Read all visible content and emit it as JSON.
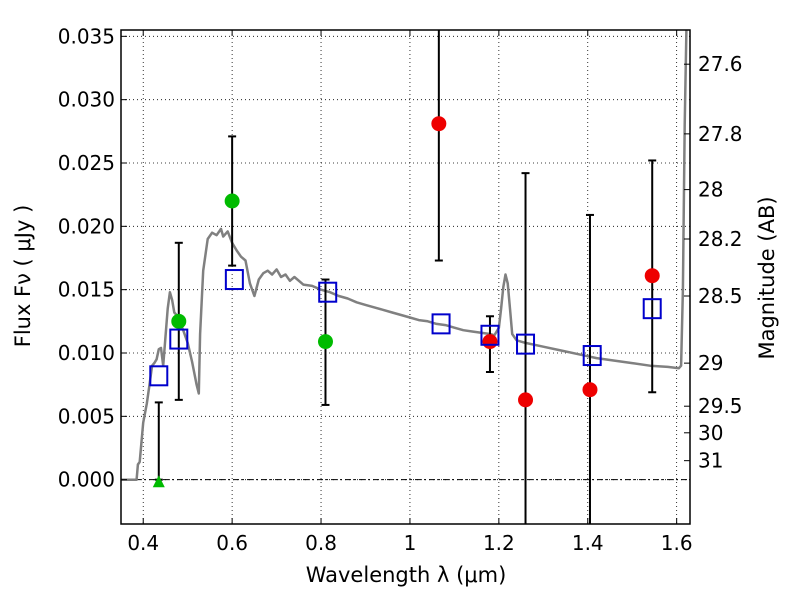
{
  "chart_data": {
    "type": "scatter",
    "title": "",
    "xlabel": "Wavelength  λ (μm)",
    "ylabel": "Flux  Fν  ( μJy )",
    "ylabel_right": "Magnitude (AB)",
    "xlim": [
      0.35,
      1.63
    ],
    "ylim": [
      -0.0035,
      0.0355
    ],
    "grid": true,
    "x_ticks": [
      {
        "value": 0.4,
        "label": "0.4"
      },
      {
        "value": 0.6,
        "label": "0.6"
      },
      {
        "value": 0.8,
        "label": "0.8"
      },
      {
        "value": 1.0,
        "label": "1"
      },
      {
        "value": 1.2,
        "label": "1.2"
      },
      {
        "value": 1.4,
        "label": "1.4"
      },
      {
        "value": 1.6,
        "label": "1.6"
      }
    ],
    "y_ticks": [
      {
        "value": 0.0,
        "label": "0.000"
      },
      {
        "value": 0.005,
        "label": "0.005"
      },
      {
        "value": 0.01,
        "label": "0.010"
      },
      {
        "value": 0.015,
        "label": "0.015"
      },
      {
        "value": 0.02,
        "label": "0.020"
      },
      {
        "value": 0.025,
        "label": "0.025"
      },
      {
        "value": 0.03,
        "label": "0.030"
      },
      {
        "value": 0.035,
        "label": "0.035"
      }
    ],
    "magnitude_ticks": [
      {
        "flux": 0.0328,
        "label": "27.6"
      },
      {
        "flux": 0.0273,
        "label": "27.8"
      },
      {
        "flux": 0.0229,
        "label": "28"
      },
      {
        "flux": 0.019,
        "label": "28.2"
      },
      {
        "flux": 0.0145,
        "label": "28.5"
      },
      {
        "flux": 0.0092,
        "label": "29"
      },
      {
        "flux": 0.0058,
        "label": "29.5"
      },
      {
        "flux": 0.0037,
        "label": "30"
      },
      {
        "flux": 0.0015,
        "label": "31"
      }
    ],
    "series": [
      {
        "name": "model-sed",
        "type": "line",
        "color": "#808080",
        "points": [
          [
            0.35,
            0.0
          ],
          [
            0.375,
            0.0
          ],
          [
            0.385,
            0.0
          ],
          [
            0.388,
            0.0012
          ],
          [
            0.392,
            0.0014
          ],
          [
            0.4,
            0.0045
          ],
          [
            0.408,
            0.006
          ],
          [
            0.414,
            0.0075
          ],
          [
            0.42,
            0.009
          ],
          [
            0.425,
            0.0092
          ],
          [
            0.43,
            0.0095
          ],
          [
            0.435,
            0.0103
          ],
          [
            0.44,
            0.0104
          ],
          [
            0.445,
            0.009
          ],
          [
            0.45,
            0.0113
          ],
          [
            0.455,
            0.0135
          ],
          [
            0.46,
            0.0148
          ],
          [
            0.465,
            0.0142
          ],
          [
            0.47,
            0.0132
          ],
          [
            0.48,
            0.0128
          ],
          [
            0.485,
            0.0122
          ],
          [
            0.49,
            0.0118
          ],
          [
            0.5,
            0.0108
          ],
          [
            0.51,
            0.0093
          ],
          [
            0.52,
            0.0075
          ],
          [
            0.525,
            0.0068
          ],
          [
            0.528,
            0.0115
          ],
          [
            0.535,
            0.0165
          ],
          [
            0.545,
            0.019
          ],
          [
            0.555,
            0.0195
          ],
          [
            0.565,
            0.0193
          ],
          [
            0.575,
            0.0198
          ],
          [
            0.58,
            0.0192
          ],
          [
            0.59,
            0.0196
          ],
          [
            0.6,
            0.0187
          ],
          [
            0.61,
            0.0181
          ],
          [
            0.62,
            0.0176
          ],
          [
            0.63,
            0.0173
          ],
          [
            0.64,
            0.0155
          ],
          [
            0.65,
            0.0145
          ],
          [
            0.66,
            0.0158
          ],
          [
            0.67,
            0.0163
          ],
          [
            0.68,
            0.0165
          ],
          [
            0.69,
            0.0162
          ],
          [
            0.7,
            0.0166
          ],
          [
            0.71,
            0.016
          ],
          [
            0.72,
            0.0162
          ],
          [
            0.73,
            0.0157
          ],
          [
            0.74,
            0.016
          ],
          [
            0.76,
            0.0154
          ],
          [
            0.78,
            0.0153
          ],
          [
            0.8,
            0.015
          ],
          [
            0.82,
            0.0148
          ],
          [
            0.84,
            0.0145
          ],
          [
            0.86,
            0.0143
          ],
          [
            0.88,
            0.014
          ],
          [
            0.9,
            0.0138
          ],
          [
            0.92,
            0.0136
          ],
          [
            0.94,
            0.0134
          ],
          [
            0.96,
            0.0132
          ],
          [
            0.98,
            0.013
          ],
          [
            1.0,
            0.0128
          ],
          [
            1.02,
            0.0126
          ],
          [
            1.04,
            0.0125
          ],
          [
            1.06,
            0.0123
          ],
          [
            1.08,
            0.0122
          ],
          [
            1.1,
            0.012
          ],
          [
            1.12,
            0.0118
          ],
          [
            1.14,
            0.0117
          ],
          [
            1.16,
            0.0116
          ],
          [
            1.18,
            0.0115
          ],
          [
            1.19,
            0.0114
          ],
          [
            1.2,
            0.012
          ],
          [
            1.205,
            0.0135
          ],
          [
            1.21,
            0.0152
          ],
          [
            1.215,
            0.0162
          ],
          [
            1.22,
            0.0155
          ],
          [
            1.225,
            0.0135
          ],
          [
            1.23,
            0.0115
          ],
          [
            1.24,
            0.011
          ],
          [
            1.26,
            0.0108
          ],
          [
            1.3,
            0.0105
          ],
          [
            1.34,
            0.0102
          ],
          [
            1.38,
            0.0099
          ],
          [
            1.42,
            0.0096
          ],
          [
            1.46,
            0.0094
          ],
          [
            1.5,
            0.0092
          ],
          [
            1.54,
            0.009
          ],
          [
            1.58,
            0.0089
          ],
          [
            1.605,
            0.0088
          ],
          [
            1.61,
            0.009
          ],
          [
            1.614,
            0.015
          ],
          [
            1.618,
            0.028
          ],
          [
            1.622,
            0.036
          ]
        ]
      },
      {
        "name": "green-detections",
        "type": "scatter",
        "marker": "circle",
        "color": "#00bb00",
        "points": [
          {
            "x": 0.48,
            "y": 0.0125
          },
          {
            "x": 0.6,
            "y": 0.022
          },
          {
            "x": 0.81,
            "y": 0.0109
          }
        ]
      },
      {
        "name": "green-upper-limit",
        "type": "scatter",
        "marker": "triangle",
        "color": "#00bb00",
        "points": [
          {
            "x": 0.435,
            "y": -0.0002
          }
        ]
      },
      {
        "name": "red-detections",
        "type": "scatter",
        "marker": "circle",
        "color": "#ee0000",
        "points": [
          {
            "x": 1.065,
            "y": 0.0281
          },
          {
            "x": 1.18,
            "y": 0.0109
          },
          {
            "x": 1.26,
            "y": 0.0063
          },
          {
            "x": 1.405,
            "y": 0.0071
          },
          {
            "x": 1.545,
            "y": 0.0161
          }
        ]
      },
      {
        "name": "model-photometry",
        "type": "scatter",
        "marker": "square",
        "color": "#0000cc",
        "points": [
          {
            "x": 0.435,
            "y": 0.0082
          },
          {
            "x": 0.48,
            "y": 0.0111
          },
          {
            "x": 0.605,
            "y": 0.0158
          },
          {
            "x": 0.815,
            "y": 0.0148
          },
          {
            "x": 1.07,
            "y": 0.0123
          },
          {
            "x": 1.18,
            "y": 0.0114
          },
          {
            "x": 1.26,
            "y": 0.0107
          },
          {
            "x": 1.41,
            "y": 0.0098
          },
          {
            "x": 1.545,
            "y": 0.0135
          }
        ]
      }
    ],
    "error_bars": [
      {
        "x": 0.435,
        "low": 0.0,
        "high": 0.0061
      },
      {
        "x": 0.48,
        "low": 0.0063,
        "high": 0.0187
      },
      {
        "x": 0.6,
        "low": 0.0169,
        "high": 0.0271
      },
      {
        "x": 0.81,
        "low": 0.0059,
        "high": 0.0158
      },
      {
        "x": 1.065,
        "low": 0.0173,
        "high": 0.0355
      },
      {
        "x": 1.18,
        "low": 0.0085,
        "high": 0.0129
      },
      {
        "x": 1.26,
        "low": -0.0035,
        "high": 0.0242
      },
      {
        "x": 1.405,
        "low": -0.0035,
        "high": 0.0209
      },
      {
        "x": 1.545,
        "low": 0.0069,
        "high": 0.0252
      }
    ]
  }
}
